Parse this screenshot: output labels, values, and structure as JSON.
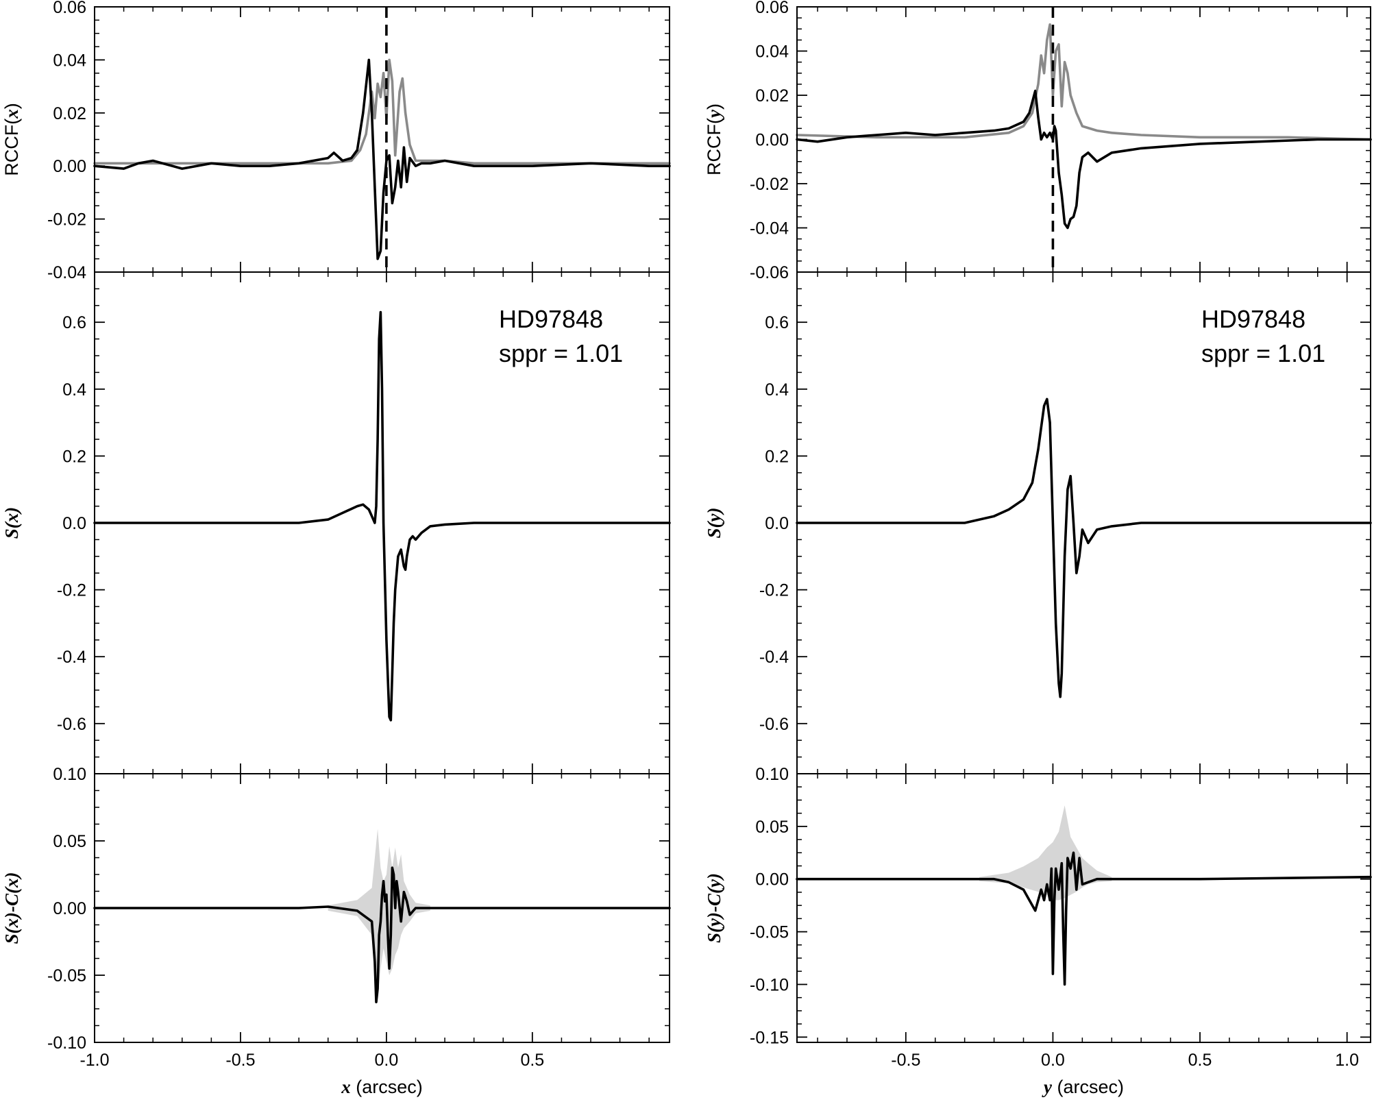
{
  "figure": {
    "annotation_lines": [
      "HD97848",
      "sppr = 1.01"
    ]
  },
  "chart_data": [
    {
      "type": "line",
      "panel": "left-top",
      "ylabel": "RCCF(x)",
      "xlim": [
        -1.0,
        0.97
      ],
      "ylim": [
        -0.04,
        0.06
      ],
      "yticks": [
        -0.04,
        -0.02,
        0.0,
        0.02,
        0.04,
        0.06
      ],
      "ytick_labels": [
        "-0.04",
        "-0.02",
        "0.00",
        "0.02",
        "0.04",
        "0.06"
      ],
      "vline_x": 0.0,
      "grid": false,
      "series": [
        {
          "color": "#8a8a8a",
          "x": [
            -1.0,
            -0.4,
            -0.2,
            -0.12,
            -0.09,
            -0.07,
            -0.05,
            -0.04,
            -0.03,
            -0.02,
            -0.01,
            0.0,
            0.01,
            0.02,
            0.03,
            0.045,
            0.055,
            0.065,
            0.08,
            0.1,
            0.15,
            0.2,
            0.3,
            0.5,
            0.97
          ],
          "y": [
            0.001,
            0.001,
            0.001,
            0.002,
            0.006,
            0.012,
            0.028,
            0.018,
            0.031,
            0.026,
            0.035,
            0.018,
            0.04,
            0.032,
            0.004,
            0.028,
            0.033,
            0.02,
            0.008,
            0.002,
            0.002,
            0.002,
            0.001,
            0.001,
            0.001
          ]
        },
        {
          "color": "#000000",
          "x": [
            -1.0,
            -0.9,
            -0.85,
            -0.8,
            -0.7,
            -0.6,
            -0.5,
            -0.4,
            -0.3,
            -0.2,
            -0.18,
            -0.15,
            -0.12,
            -0.1,
            -0.08,
            -0.06,
            -0.05,
            -0.04,
            -0.03,
            -0.02,
            -0.01,
            0.0,
            0.01,
            0.02,
            0.03,
            0.04,
            0.05,
            0.06,
            0.07,
            0.08,
            0.1,
            0.12,
            0.15,
            0.2,
            0.3,
            0.5,
            0.7,
            0.9,
            0.97
          ],
          "y": [
            0.0,
            -0.001,
            0.001,
            0.002,
            -0.001,
            0.001,
            0.0,
            0.0,
            0.001,
            0.003,
            0.005,
            0.002,
            0.003,
            0.006,
            0.02,
            0.04,
            0.02,
            -0.008,
            -0.035,
            -0.032,
            -0.01,
            0.002,
            0.004,
            -0.014,
            -0.008,
            0.002,
            -0.008,
            0.007,
            -0.006,
            0.003,
            0.0,
            0.001,
            0.001,
            0.002,
            0.0,
            0.0,
            0.001,
            0.0,
            0.0
          ]
        }
      ]
    },
    {
      "type": "line",
      "panel": "left-middle",
      "ylabel": "S(x)",
      "xlim": [
        -1.0,
        0.97
      ],
      "ylim": [
        -0.75,
        0.75
      ],
      "yticks": [
        -0.6,
        -0.4,
        -0.2,
        0.0,
        0.2,
        0.4,
        0.6
      ],
      "ytick_labels": [
        "-0.6",
        "-0.4",
        "-0.2",
        "0.0",
        "0.2",
        "0.4",
        "0.6"
      ],
      "grid": false,
      "series": [
        {
          "color": "#000000",
          "x": [
            -1.0,
            -0.5,
            -0.3,
            -0.2,
            -0.15,
            -0.1,
            -0.08,
            -0.06,
            -0.05,
            -0.04,
            -0.035,
            -0.03,
            -0.025,
            -0.02,
            -0.015,
            -0.01,
            0.0,
            0.01,
            0.015,
            0.02,
            0.025,
            0.03,
            0.04,
            0.05,
            0.06,
            0.065,
            0.07,
            0.08,
            0.09,
            0.1,
            0.12,
            0.15,
            0.2,
            0.3,
            0.5,
            0.97
          ],
          "y": [
            0.0,
            0.0,
            0.0,
            0.01,
            0.03,
            0.05,
            0.055,
            0.04,
            0.02,
            0.0,
            0.05,
            0.25,
            0.55,
            0.63,
            0.4,
            0.0,
            -0.35,
            -0.58,
            -0.59,
            -0.45,
            -0.3,
            -0.2,
            -0.1,
            -0.08,
            -0.13,
            -0.14,
            -0.1,
            -0.05,
            -0.04,
            -0.05,
            -0.03,
            -0.01,
            -0.005,
            0.0,
            0.0,
            0.0
          ]
        }
      ]
    },
    {
      "type": "line",
      "panel": "left-bottom",
      "xlabel": "x (arcsec)",
      "ylabel": "S(x)-C(x)",
      "xlim": [
        -1.0,
        0.97
      ],
      "ylim": [
        -0.1,
        0.1
      ],
      "yticks": [
        -0.1,
        -0.05,
        0.0,
        0.05,
        0.1
      ],
      "ytick_labels": [
        "-0.10",
        "-0.05",
        "0.00",
        "0.05",
        "0.10"
      ],
      "xticks": [
        -1.0,
        -0.5,
        0.0,
        0.5
      ],
      "xtick_labels": [
        "-1.0",
        "-0.5",
        "0.0",
        "0.5"
      ],
      "grid": false,
      "band": {
        "color": "#d6d6d6",
        "x": [
          -0.2,
          -0.1,
          -0.05,
          -0.03,
          -0.02,
          -0.01,
          0.0,
          0.01,
          0.02,
          0.03,
          0.04,
          0.05,
          0.06,
          0.08,
          0.1,
          0.15
        ],
        "upper": [
          0.002,
          0.006,
          0.015,
          0.059,
          0.03,
          0.02,
          0.025,
          0.046,
          0.03,
          0.045,
          0.03,
          0.04,
          0.02,
          0.01,
          0.004,
          0.002
        ],
        "lower": [
          -0.002,
          -0.006,
          -0.02,
          -0.066,
          -0.045,
          -0.03,
          -0.04,
          -0.05,
          -0.045,
          -0.035,
          -0.03,
          -0.02,
          -0.015,
          -0.01,
          -0.004,
          -0.002
        ]
      },
      "series": [
        {
          "color": "#000000",
          "x": [
            -1.0,
            -0.5,
            -0.3,
            -0.2,
            -0.1,
            -0.05,
            -0.04,
            -0.035,
            -0.03,
            -0.025,
            -0.02,
            -0.015,
            -0.01,
            -0.005,
            0.0,
            0.005,
            0.01,
            0.015,
            0.02,
            0.025,
            0.03,
            0.035,
            0.04,
            0.05,
            0.06,
            0.07,
            0.08,
            0.1,
            0.15,
            0.2,
            0.5,
            0.97
          ],
          "y": [
            0.0,
            0.0,
            0.0,
            0.001,
            -0.002,
            -0.01,
            -0.04,
            -0.07,
            -0.06,
            -0.02,
            -0.01,
            0.01,
            0.02,
            0.005,
            0.01,
            -0.02,
            -0.045,
            -0.02,
            0.03,
            0.025,
            0.0,
            0.02,
            0.012,
            -0.01,
            0.012,
            0.005,
            -0.005,
            0.0,
            0.0,
            0.0,
            0.0,
            0.0
          ]
        }
      ]
    },
    {
      "type": "line",
      "panel": "right-top",
      "ylabel": "RCCF(y)",
      "xlim": [
        -0.87,
        1.08
      ],
      "ylim": [
        -0.06,
        0.06
      ],
      "yticks": [
        -0.06,
        -0.04,
        -0.02,
        0.0,
        0.02,
        0.04,
        0.06
      ],
      "ytick_labels": [
        "-0.06",
        "-0.04",
        "-0.02",
        "0.00",
        "0.02",
        "0.04",
        "0.06"
      ],
      "vline_x": 0.0,
      "grid": false,
      "series": [
        {
          "color": "#8a8a8a",
          "x": [
            -0.87,
            -0.6,
            -0.3,
            -0.15,
            -0.1,
            -0.07,
            -0.05,
            -0.04,
            -0.03,
            -0.02,
            -0.01,
            0.0,
            0.01,
            0.02,
            0.03,
            0.04,
            0.05,
            0.06,
            0.08,
            0.1,
            0.15,
            0.2,
            0.3,
            0.5,
            0.8,
            1.08
          ],
          "y": [
            0.002,
            0.001,
            0.001,
            0.003,
            0.006,
            0.012,
            0.025,
            0.038,
            0.03,
            0.045,
            0.052,
            0.02,
            0.04,
            0.043,
            0.015,
            0.035,
            0.03,
            0.02,
            0.012,
            0.006,
            0.004,
            0.003,
            0.002,
            0.001,
            0.001,
            0.0
          ]
        },
        {
          "color": "#000000",
          "x": [
            -0.87,
            -0.8,
            -0.7,
            -0.6,
            -0.5,
            -0.4,
            -0.3,
            -0.2,
            -0.15,
            -0.1,
            -0.08,
            -0.06,
            -0.05,
            -0.04,
            -0.03,
            -0.02,
            -0.01,
            0.0,
            0.005,
            0.01,
            0.02,
            0.03,
            0.04,
            0.05,
            0.06,
            0.07,
            0.08,
            0.09,
            0.1,
            0.12,
            0.15,
            0.2,
            0.3,
            0.5,
            0.7,
            0.9,
            1.08
          ],
          "y": [
            0.0,
            -0.001,
            0.001,
            0.002,
            0.003,
            0.002,
            0.003,
            0.004,
            0.005,
            0.008,
            0.012,
            0.022,
            0.01,
            0.0,
            0.003,
            0.001,
            0.003,
            0.0,
            0.006,
            0.004,
            -0.015,
            -0.025,
            -0.038,
            -0.04,
            -0.036,
            -0.035,
            -0.03,
            -0.015,
            -0.008,
            -0.006,
            -0.01,
            -0.006,
            -0.004,
            -0.002,
            -0.001,
            0.0,
            0.0
          ]
        }
      ]
    },
    {
      "type": "line",
      "panel": "right-middle",
      "ylabel": "S(y)",
      "xlim": [
        -0.87,
        1.08
      ],
      "ylim": [
        -0.75,
        0.75
      ],
      "yticks": [
        -0.6,
        -0.4,
        -0.2,
        0.0,
        0.2,
        0.4,
        0.6
      ],
      "ytick_labels": [
        "-0.6",
        "-0.4",
        "-0.2",
        "0.0",
        "0.2",
        "0.4",
        "0.6"
      ],
      "grid": false,
      "series": [
        {
          "color": "#000000",
          "x": [
            -0.87,
            -0.5,
            -0.3,
            -0.2,
            -0.15,
            -0.1,
            -0.07,
            -0.05,
            -0.03,
            -0.02,
            -0.01,
            0.0,
            0.01,
            0.02,
            0.025,
            0.03,
            0.04,
            0.05,
            0.06,
            0.07,
            0.08,
            0.09,
            0.1,
            0.12,
            0.15,
            0.2,
            0.3,
            0.5,
            1.08
          ],
          "y": [
            0.0,
            0.0,
            0.0,
            0.02,
            0.04,
            0.07,
            0.12,
            0.22,
            0.35,
            0.37,
            0.3,
            0.0,
            -0.3,
            -0.48,
            -0.52,
            -0.45,
            -0.1,
            0.1,
            0.14,
            0.0,
            -0.15,
            -0.1,
            -0.02,
            -0.06,
            -0.02,
            -0.01,
            0.0,
            0.0,
            0.0
          ]
        }
      ]
    },
    {
      "type": "line",
      "panel": "right-bottom",
      "xlabel": "y (arcsec)",
      "ylabel": "S(y)-C(y)",
      "xlim": [
        -0.87,
        1.08
      ],
      "ylim": [
        -0.155,
        0.1
      ],
      "yticks": [
        -0.15,
        -0.1,
        -0.05,
        0.0,
        0.05,
        0.1
      ],
      "ytick_labels": [
        "-0.15",
        "-0.10",
        "-0.05",
        "0.00",
        "0.05",
        "0.10"
      ],
      "xticks": [
        -0.5,
        0.0,
        0.5,
        1.0
      ],
      "xtick_labels": [
        "-0.5",
        "0.0",
        "0.5",
        "1.0"
      ],
      "grid": false,
      "band": {
        "color": "#d6d6d6",
        "x": [
          -0.25,
          -0.15,
          -0.1,
          -0.05,
          -0.02,
          0.0,
          0.02,
          0.04,
          0.06,
          0.08,
          0.1,
          0.12,
          0.15,
          0.2
        ],
        "upper": [
          0.002,
          0.006,
          0.012,
          0.02,
          0.03,
          0.035,
          0.045,
          0.07,
          0.04,
          0.03,
          0.02,
          0.015,
          0.008,
          0.002
        ],
        "lower": [
          -0.002,
          -0.004,
          -0.008,
          -0.012,
          -0.015,
          -0.02,
          -0.02,
          -0.018,
          -0.015,
          -0.012,
          -0.008,
          -0.005,
          -0.003,
          -0.002
        ]
      },
      "series": [
        {
          "color": "#000000",
          "x": [
            -0.87,
            -0.5,
            -0.3,
            -0.2,
            -0.15,
            -0.1,
            -0.08,
            -0.06,
            -0.04,
            -0.03,
            -0.02,
            -0.01,
            -0.005,
            0.0,
            0.005,
            0.01,
            0.02,
            0.03,
            0.035,
            0.04,
            0.045,
            0.05,
            0.06,
            0.07,
            0.08,
            0.09,
            0.1,
            0.12,
            0.15,
            0.2,
            0.5,
            1.08
          ],
          "y": [
            0.0,
            0.0,
            0.0,
            0.0,
            -0.003,
            -0.01,
            -0.02,
            -0.03,
            -0.01,
            -0.02,
            -0.005,
            -0.02,
            0.01,
            -0.09,
            -0.02,
            0.01,
            -0.01,
            0.015,
            -0.05,
            -0.1,
            -0.03,
            0.02,
            0.01,
            0.025,
            -0.01,
            0.02,
            -0.005,
            -0.003,
            0.0,
            0.0,
            0.0,
            0.002
          ]
        }
      ]
    }
  ]
}
